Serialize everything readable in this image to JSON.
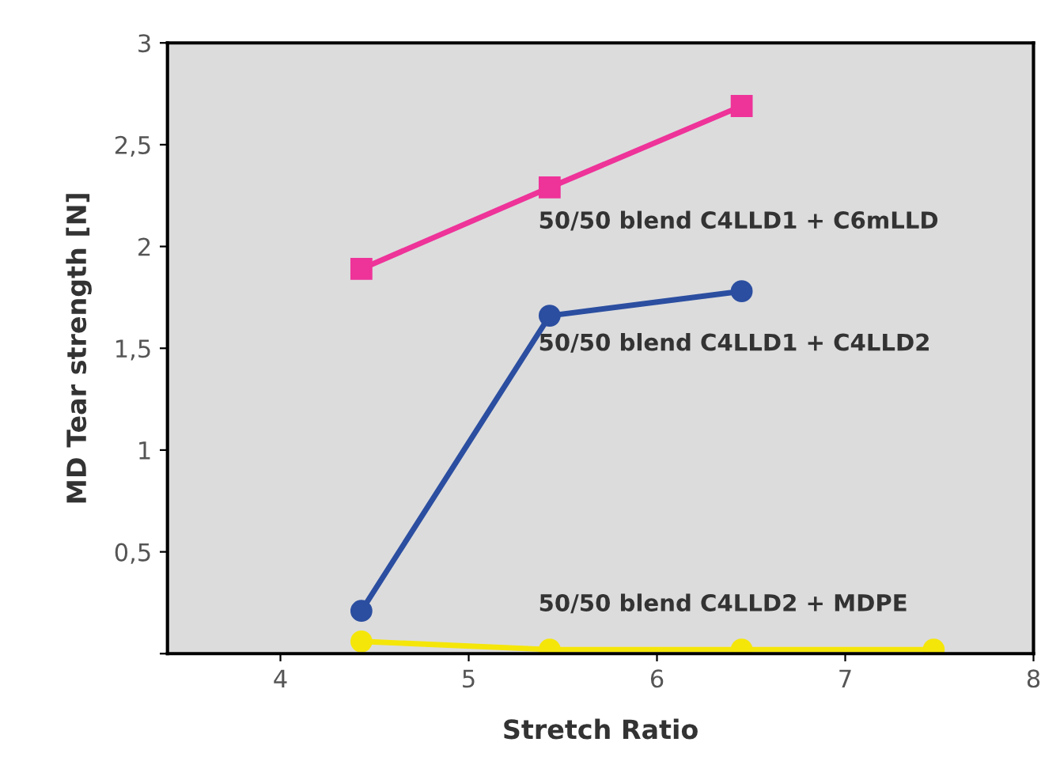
{
  "chart_data": {
    "type": "line",
    "xlabel": "Stretch Ratio",
    "ylabel": "MD Tear strength [N]",
    "xlim": [
      3.4,
      8
    ],
    "xticks": [
      4,
      5,
      6,
      7,
      8
    ],
    "ylim": [
      0,
      3
    ],
    "yticks": [
      {
        "value": 0,
        "label": null
      },
      {
        "value": 0.5,
        "label": "0,5"
      },
      1,
      {
        "value": 1.5,
        "label": "1,5"
      },
      2,
      {
        "value": 2.5,
        "label": "2,5"
      },
      3
    ],
    "grid": false,
    "legend": false,
    "series": [
      {
        "name": "50/50 blend C4LLD1 + C6mLLD",
        "color": "#ee3399",
        "marker": "square",
        "x": [
          4.43,
          5.43,
          6.45
        ],
        "values": [
          1.89,
          2.29,
          2.69
        ]
      },
      {
        "name": "50/50 blend C4LLD1 + C4LLD2",
        "color": "#2b4ea0",
        "marker": "circle",
        "x": [
          4.43,
          5.43,
          6.45
        ],
        "values": [
          0.21,
          1.66,
          1.78
        ]
      },
      {
        "name": "50/50 blend C4LLD2 + MDPE",
        "color": "#f5e60a",
        "marker": "circle",
        "x": [
          4.43,
          5.43,
          6.45,
          7.47
        ],
        "values": [
          0.06,
          0.02,
          0.02,
          0.02
        ]
      }
    ]
  }
}
